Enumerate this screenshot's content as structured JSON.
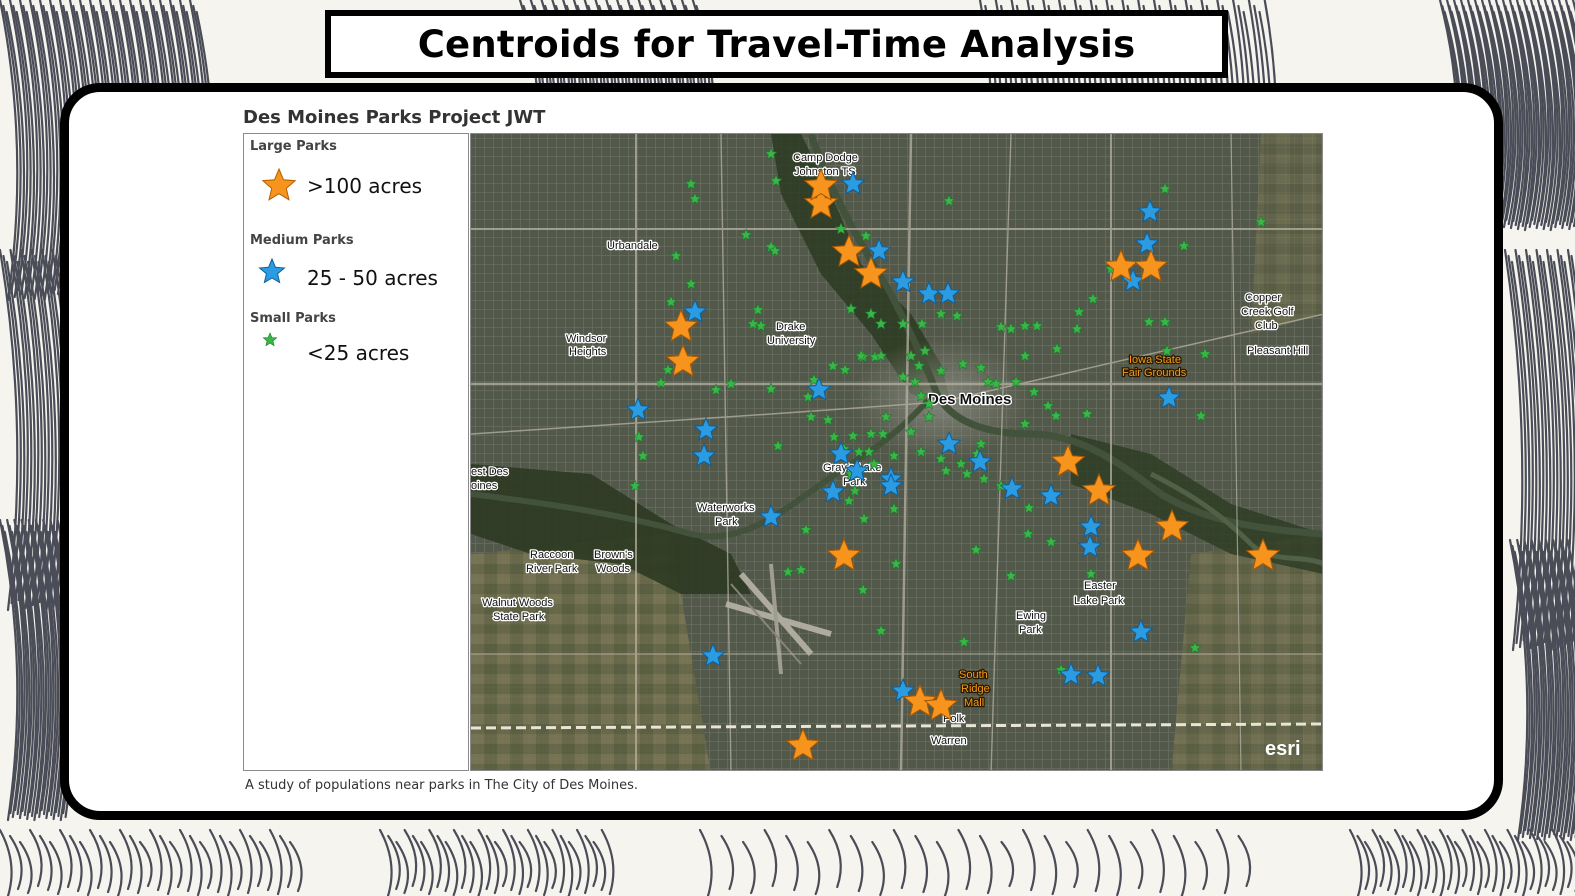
{
  "slide_title": "Centroids for Travel-Time Analysis",
  "map_title": "Des Moines Parks Project JWT",
  "caption": "A study of populations near parks in The City of Des Moines.",
  "colors": {
    "large": "#f7941d",
    "medium": "#2b9be2",
    "small": "#39b54a",
    "frame": "#000000"
  },
  "legend": [
    {
      "heading": "Large Parks",
      "label": ">100 acres",
      "icon": "orange-star-icon"
    },
    {
      "heading": "Medium Parks",
      "label": "25 - 50 acres",
      "icon": "blue-star-icon"
    },
    {
      "heading": "Small Parks",
      "label": "<25 acres",
      "icon": "green-star-icon"
    }
  ],
  "places": {
    "camp_dodge": "Camp Dodge",
    "johnston_ts": "Johnston TS",
    "urbandale": "Urbandale",
    "windsor_1": "Windsor",
    "windsor_2": "Heights",
    "drake_1": "Drake",
    "drake_2": "University",
    "des_moines": "Des Moines",
    "copper_1": "Copper",
    "copper_2": "Creek Golf",
    "copper_3": "Club",
    "pleasant_hill": "Pleasant Hill",
    "fair_1": "Iowa State",
    "fair_2": "Fair Grounds",
    "wdm_1": "est Des",
    "wdm_2": "oines",
    "grays_1": "Gray's Lake",
    "grays_2": "Park",
    "waterworks_1": "Waterworks",
    "waterworks_2": "Park",
    "raccoon_1": "Raccoon",
    "raccoon_2": "River Park",
    "browns_1": "Brown's",
    "browns_2": "Woods",
    "walnut_1": "Walnut Woods",
    "walnut_2": "State Park",
    "easter_1": "Easter",
    "easter_2": "Lake Park",
    "ewing_1": "Ewing",
    "ewing_2": "Park",
    "south_1": "South",
    "south_2": "Ridge",
    "south_3": "Mall",
    "polk": "Polk",
    "warren": "Warren"
  },
  "esri_logo": "esri",
  "parks": {
    "large": [
      [
        350,
        70
      ],
      [
        350,
        52
      ],
      [
        378,
        118
      ],
      [
        400,
        140
      ],
      [
        210,
        193
      ],
      [
        212,
        228
      ],
      [
        650,
        133
      ],
      [
        680,
        133
      ],
      [
        597,
        328
      ],
      [
        628,
        357
      ],
      [
        701,
        393
      ],
      [
        667,
        422
      ],
      [
        792,
        422
      ],
      [
        373,
        422
      ],
      [
        449,
        568
      ],
      [
        470,
        572
      ],
      [
        332,
        612
      ]
    ],
    "medium": [
      [
        382,
        50
      ],
      [
        679,
        78
      ],
      [
        676,
        110
      ],
      [
        662,
        147
      ],
      [
        408,
        117
      ],
      [
        432,
        148
      ],
      [
        458,
        160
      ],
      [
        477,
        160
      ],
      [
        224,
        178
      ],
      [
        167,
        276
      ],
      [
        235,
        296
      ],
      [
        233,
        322
      ],
      [
        348,
        256
      ],
      [
        370,
        320
      ],
      [
        386,
        337
      ],
      [
        420,
        345
      ],
      [
        478,
        310
      ],
      [
        509,
        328
      ],
      [
        541,
        355
      ],
      [
        580,
        362
      ],
      [
        620,
        393
      ],
      [
        619,
        413
      ],
      [
        300,
        383
      ],
      [
        362,
        358
      ],
      [
        420,
        352
      ],
      [
        698,
        264
      ],
      [
        670,
        498
      ],
      [
        600,
        541
      ],
      [
        627,
        542
      ],
      [
        242,
        522
      ],
      [
        432,
        557
      ]
    ],
    "small": [
      [
        300,
        20
      ],
      [
        305,
        47
      ],
      [
        220,
        50
      ],
      [
        224,
        65
      ],
      [
        478,
        67
      ],
      [
        694,
        55
      ],
      [
        275,
        101
      ],
      [
        300,
        113
      ],
      [
        304,
        117
      ],
      [
        205,
        122
      ],
      [
        370,
        95
      ],
      [
        395,
        102
      ],
      [
        220,
        150
      ],
      [
        200,
        168
      ],
      [
        287,
        176
      ],
      [
        290,
        192
      ],
      [
        282,
        190
      ],
      [
        380,
        175
      ],
      [
        400,
        180
      ],
      [
        410,
        190
      ],
      [
        392,
        223
      ],
      [
        404,
        223
      ],
      [
        374,
        236
      ],
      [
        432,
        190
      ],
      [
        451,
        190
      ],
      [
        454,
        217
      ],
      [
        440,
        222
      ],
      [
        448,
        232
      ],
      [
        470,
        180
      ],
      [
        486,
        182
      ],
      [
        530,
        193
      ],
      [
        540,
        195
      ],
      [
        554,
        192
      ],
      [
        566,
        192
      ],
      [
        554,
        222
      ],
      [
        586,
        215
      ],
      [
        608,
        178
      ],
      [
        622,
        165
      ],
      [
        606,
        195
      ],
      [
        640,
        135
      ],
      [
        713,
        112
      ],
      [
        790,
        88
      ],
      [
        694,
        188
      ],
      [
        678,
        188
      ],
      [
        696,
        217
      ],
      [
        734,
        220
      ],
      [
        730,
        282
      ],
      [
        616,
        280
      ],
      [
        585,
        282
      ],
      [
        554,
        290
      ],
      [
        577,
        272
      ],
      [
        563,
        258
      ],
      [
        545,
        248
      ],
      [
        525,
        250
      ],
      [
        517,
        248
      ],
      [
        510,
        234
      ],
      [
        492,
        230
      ],
      [
        470,
        237
      ],
      [
        432,
        243
      ],
      [
        444,
        248
      ],
      [
        450,
        262
      ],
      [
        458,
        270
      ],
      [
        458,
        283
      ],
      [
        440,
        298
      ],
      [
        450,
        318
      ],
      [
        423,
        322
      ],
      [
        470,
        325
      ],
      [
        490,
        330
      ],
      [
        496,
        340
      ],
      [
        475,
        337
      ],
      [
        510,
        310
      ],
      [
        506,
        320
      ],
      [
        513,
        345
      ],
      [
        530,
        352
      ],
      [
        558,
        374
      ],
      [
        557,
        400
      ],
      [
        580,
        408
      ],
      [
        540,
        442
      ],
      [
        505,
        416
      ],
      [
        423,
        375
      ],
      [
        393,
        385
      ],
      [
        384,
        357
      ],
      [
        380,
        340
      ],
      [
        412,
        300
      ],
      [
        415,
        283
      ],
      [
        400,
        300
      ],
      [
        398,
        318
      ],
      [
        388,
        318
      ],
      [
        373,
        315
      ],
      [
        357,
        286
      ],
      [
        340,
        283
      ],
      [
        337,
        263
      ],
      [
        343,
        246
      ],
      [
        362,
        232
      ],
      [
        390,
        222
      ],
      [
        410,
        222
      ],
      [
        382,
        302
      ],
      [
        363,
        303
      ],
      [
        300,
        255
      ],
      [
        307,
        312
      ],
      [
        335,
        396
      ],
      [
        330,
        436
      ],
      [
        317,
        438
      ],
      [
        168,
        303
      ],
      [
        172,
        322
      ],
      [
        164,
        352
      ],
      [
        260,
        250
      ],
      [
        245,
        256
      ],
      [
        190,
        249
      ],
      [
        197,
        236
      ],
      [
        378,
        367
      ],
      [
        403,
        330
      ],
      [
        425,
        430
      ],
      [
        410,
        497
      ],
      [
        493,
        508
      ],
      [
        590,
        536
      ],
      [
        620,
        440
      ],
      [
        724,
        514
      ],
      [
        392,
        456
      ]
    ]
  }
}
